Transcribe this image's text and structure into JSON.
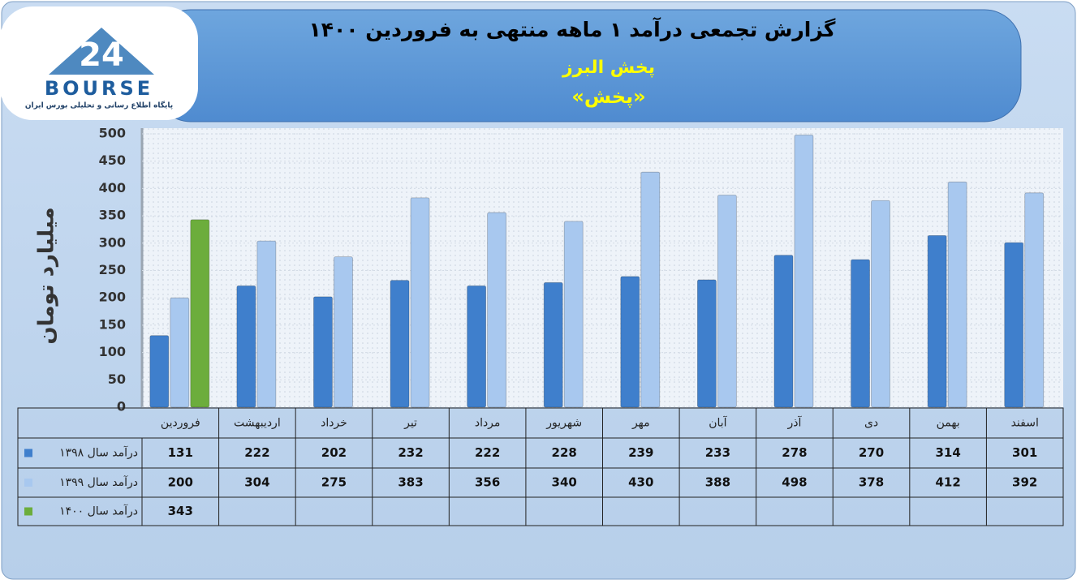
{
  "logo": {
    "mark": "24",
    "name": "BOURSE",
    "tagline": "پایگاه اطلاع رسانی و تحلیلی بورس ایران"
  },
  "chart_data": {
    "type": "bar",
    "title": "گزارش تجمعی درآمد ۱ ماهه منتهی به فروردین ۱۴۰۰",
    "subtitle": "پخش البرز",
    "ticker": "«پخش»",
    "y_label": "میلیارد تومان",
    "categories": [
      "فروردین",
      "اردیبهشت",
      "خرداد",
      "تیر",
      "مرداد",
      "شهریور",
      "مهر",
      "آبان",
      "آذر",
      "دی",
      "بهمن",
      "اسفند"
    ],
    "series": [
      {
        "name": "درآمد سال ۱۳۹۸",
        "color": "#3f7fcc",
        "values": [
          131,
          222,
          202,
          232,
          222,
          228,
          239,
          233,
          278,
          270,
          314,
          301
        ]
      },
      {
        "name": "درآمد سال ۱۳۹۹",
        "color": "#a8c8ef",
        "values": [
          200,
          304,
          275,
          383,
          356,
          340,
          430,
          388,
          498,
          378,
          412,
          392
        ]
      },
      {
        "name": "درآمد سال ۱۴۰۰",
        "color": "#6cad3c",
        "values": [
          343,
          null,
          null,
          null,
          null,
          null,
          null,
          null,
          null,
          null,
          null,
          null
        ]
      }
    ],
    "ylim": [
      0,
      500
    ],
    "yticks": [
      0,
      50,
      100,
      150,
      200,
      250,
      300,
      350,
      400,
      450,
      500
    ],
    "grid": true
  }
}
